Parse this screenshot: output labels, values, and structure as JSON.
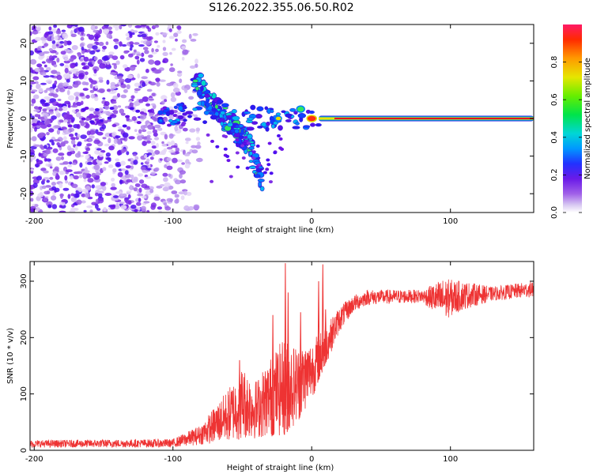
{
  "title": "S126.2022.355.06.50.R02",
  "chart_data": [
    {
      "type": "heatmap",
      "title": "S126.2022.355.06.50.R02",
      "xlabel": "Height of straight line (km)",
      "ylabel": "Frequency (Hz)",
      "xlim": [
        -203,
        160
      ],
      "ylim": [
        -25,
        25
      ],
      "xticks": [
        -200,
        -100,
        0,
        100
      ],
      "yticks": [
        -20,
        -10,
        0,
        10,
        20
      ],
      "colorbar": {
        "label": "Normalized spectral amplitude",
        "range": [
          0,
          1
        ],
        "ticks": [
          0.0,
          0.2,
          0.4,
          0.6,
          0.8
        ]
      },
      "carrier": {
        "x_range": [
          5,
          160
        ],
        "frequency": 0
      },
      "ridge": [
        {
          "x": -85,
          "f": 11
        },
        {
          "x": -80,
          "f": 9
        },
        {
          "x": -75,
          "f": 5
        },
        {
          "x": -65,
          "f": 1
        },
        {
          "x": -55,
          "f": -3
        },
        {
          "x": -45,
          "f": -7
        },
        {
          "x": -40,
          "f": -13
        },
        {
          "x": -35,
          "f": -17
        }
      ],
      "noise_region": {
        "x_range": [
          -203,
          -75
        ],
        "f_range": [
          -25,
          25
        ]
      }
    },
    {
      "type": "line",
      "xlabel": "Height of straight line (km)",
      "ylabel": "SNR (10 * v/v)",
      "xlim": [
        -203,
        160
      ],
      "ylim": [
        0,
        335
      ],
      "xticks": [
        -200,
        -100,
        0,
        100
      ],
      "yticks": [
        0,
        100,
        200,
        300
      ],
      "color": "#ee3333",
      "envelope": [
        {
          "x": -203,
          "lo": 5,
          "hi": 18
        },
        {
          "x": -100,
          "lo": 5,
          "hi": 20
        },
        {
          "x": -80,
          "lo": 10,
          "hi": 45
        },
        {
          "x": -60,
          "lo": 15,
          "hi": 110
        },
        {
          "x": -50,
          "lo": 20,
          "hi": 150
        },
        {
          "x": -40,
          "lo": 20,
          "hi": 125
        },
        {
          "x": -30,
          "lo": 25,
          "hi": 165
        },
        {
          "x": -20,
          "lo": 25,
          "hi": 200
        },
        {
          "x": -10,
          "lo": 50,
          "hi": 185
        },
        {
          "x": 0,
          "lo": 90,
          "hi": 195
        },
        {
          "x": 10,
          "lo": 150,
          "hi": 220
        },
        {
          "x": 20,
          "lo": 210,
          "hi": 255
        },
        {
          "x": 30,
          "lo": 245,
          "hi": 275
        },
        {
          "x": 40,
          "lo": 258,
          "hi": 285
        },
        {
          "x": 80,
          "lo": 262,
          "hi": 285
        },
        {
          "x": 95,
          "lo": 230,
          "hi": 305
        },
        {
          "x": 110,
          "lo": 250,
          "hi": 300
        },
        {
          "x": 130,
          "lo": 265,
          "hi": 290
        },
        {
          "x": 160,
          "lo": 272,
          "hi": 300
        }
      ],
      "spikes": [
        {
          "x": -19,
          "y": 332
        },
        {
          "x": -17,
          "y": 280
        },
        {
          "x": -28,
          "y": 240
        },
        {
          "x": 8,
          "y": 330
        },
        {
          "x": 5,
          "y": 300
        },
        {
          "x": 10,
          "y": 250
        },
        {
          "x": -52,
          "y": 160
        },
        {
          "x": -8,
          "y": 245
        }
      ]
    }
  ]
}
